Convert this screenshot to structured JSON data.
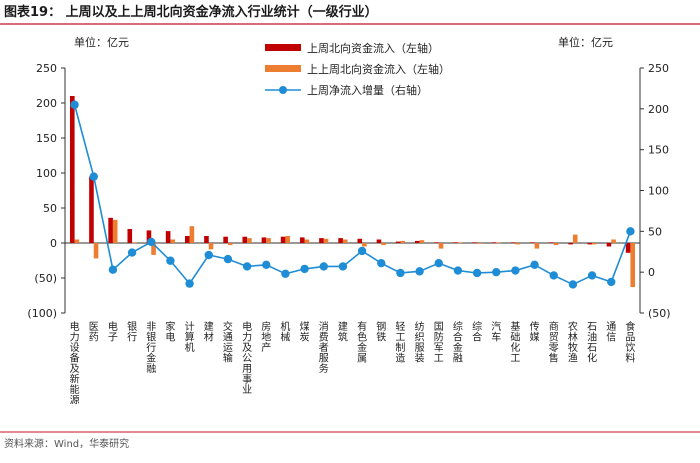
{
  "header": {
    "title": "图表19：  上周以及上上周北向资金净流入行业统计（一级行业）",
    "unit_left": "单位：亿元",
    "unit_right": "单位：亿元"
  },
  "footer": {
    "source": "资料来源：Wind，华泰研究"
  },
  "chart_data": {
    "type": "bar",
    "categories": [
      "电力设备及新能源",
      "医药",
      "电子",
      "银行",
      "非银行金融",
      "家电",
      "计算机",
      "建材",
      "交通运输",
      "电力及公用事业",
      "房地产",
      "机械",
      "煤炭",
      "消费者服务",
      "建筑",
      "有色金属",
      "钢铁",
      "轻工制造",
      "纺织服装",
      "国防军工",
      "综合金融",
      "综合",
      "汽车",
      "基础化工",
      "传媒",
      "商贸零售",
      "农林牧渔",
      "石油石化",
      "通信",
      "食品饮料"
    ],
    "series": [
      {
        "name": "上周北向资金流入（左轴）",
        "axis": "left",
        "kind": "bar",
        "color": "#c00000",
        "values": [
          210,
          95,
          36,
          20,
          18,
          17,
          10,
          10,
          9,
          9,
          8,
          9,
          8,
          7,
          7,
          6,
          5,
          2,
          3,
          1,
          1,
          1,
          1,
          1,
          1,
          1,
          -2,
          -2,
          -5,
          -14
        ]
      },
      {
        "name": "上上周北向资金流入（左轴）",
        "axis": "left",
        "kind": "bar",
        "color": "#ed7d31",
        "values": [
          5,
          -22,
          33,
          1,
          -17,
          5,
          24,
          -9,
          -3,
          7,
          7,
          10,
          5,
          6,
          5,
          -5,
          -3,
          3,
          4,
          -8,
          1,
          -1,
          1,
          -2,
          -8,
          -3,
          12,
          -2,
          5,
          -63
        ]
      },
      {
        "name": "上周净流入增量（右轴）",
        "axis": "right",
        "kind": "line",
        "color": "#1f8dd6",
        "values": [
          205,
          117,
          3,
          24,
          37,
          14,
          -14,
          21,
          16,
          7,
          9,
          -2,
          4,
          7,
          7,
          26,
          11,
          -1,
          1,
          11,
          2,
          -1,
          0,
          2,
          9,
          -4,
          -15,
          -4,
          -12,
          50
        ]
      }
    ],
    "left_axis": {
      "min": -100,
      "max": 250,
      "ticks": [
        -100,
        -50,
        0,
        50,
        100,
        150,
        200,
        250
      ],
      "tick_labels": [
        "(100)",
        "(50)",
        "0",
        "50",
        "100",
        "150",
        "200",
        "250"
      ]
    },
    "right_axis": {
      "min": -50,
      "max": 250,
      "ticks": [
        -50,
        0,
        50,
        100,
        150,
        200,
        250
      ],
      "tick_labels": [
        "(50)",
        "0",
        "50",
        "100",
        "150",
        "200",
        "250"
      ]
    },
    "grid": false,
    "legend_position": "top-center"
  }
}
